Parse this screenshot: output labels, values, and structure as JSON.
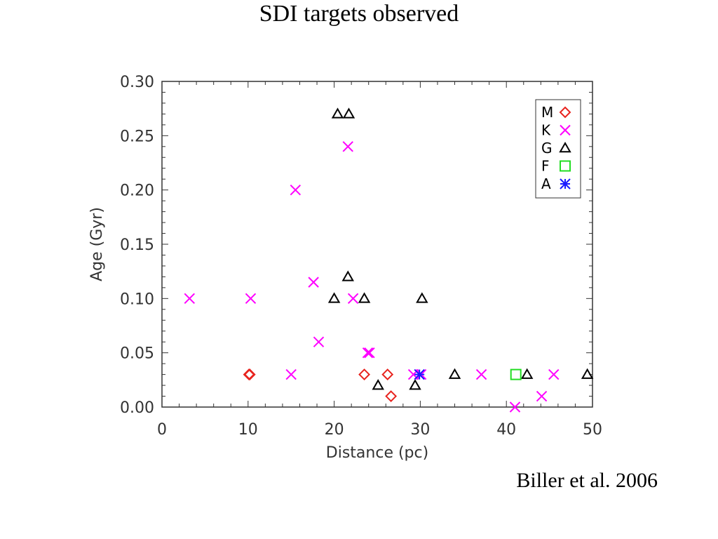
{
  "title": "SDI targets observed",
  "citation": "Biller et al. 2006",
  "chart_data": {
    "type": "scatter",
    "title": "",
    "xlabel": "Distance (pc)",
    "ylabel": "Age (Gyr)",
    "xlim": [
      0,
      50
    ],
    "ylim": [
      0,
      0.3
    ],
    "xticks": [
      "0",
      "10",
      "20",
      "30",
      "40",
      "50"
    ],
    "yticks": [
      "0.00",
      "0.05",
      "0.10",
      "0.15",
      "0.20",
      "0.25",
      "0.30"
    ],
    "legend_position": "top-right",
    "series": [
      {
        "name": "M",
        "marker": "diamond",
        "color": "#e8231e",
        "points": [
          [
            10.1,
            0.03
          ],
          [
            10.2,
            0.03
          ],
          [
            23.5,
            0.03
          ],
          [
            26.2,
            0.03
          ],
          [
            26.6,
            0.01
          ]
        ]
      },
      {
        "name": "K",
        "marker": "x",
        "color": "#ff00ff",
        "points": [
          [
            3.2,
            0.1
          ],
          [
            10.3,
            0.1
          ],
          [
            15.0,
            0.03
          ],
          [
            15.5,
            0.2
          ],
          [
            17.6,
            0.115
          ],
          [
            18.2,
            0.06
          ],
          [
            21.6,
            0.24
          ],
          [
            22.2,
            0.1
          ],
          [
            23.9,
            0.05
          ],
          [
            24.1,
            0.05
          ],
          [
            29.2,
            0.03
          ],
          [
            30.1,
            0.03
          ],
          [
            37.1,
            0.03
          ],
          [
            41.0,
            0.0
          ],
          [
            44.1,
            0.01
          ],
          [
            45.5,
            0.03
          ]
        ]
      },
      {
        "name": "G",
        "marker": "triangle",
        "color": "#000000",
        "points": [
          [
            20.4,
            0.27
          ],
          [
            21.7,
            0.27
          ],
          [
            21.6,
            0.12
          ],
          [
            20.0,
            0.1
          ],
          [
            23.5,
            0.1
          ],
          [
            30.2,
            0.1
          ],
          [
            25.1,
            0.02
          ],
          [
            29.4,
            0.02
          ],
          [
            34.0,
            0.03
          ],
          [
            42.4,
            0.03
          ],
          [
            49.4,
            0.03
          ]
        ]
      },
      {
        "name": "F",
        "marker": "square",
        "color": "#22dd22",
        "points": [
          [
            41.1,
            0.03
          ]
        ]
      },
      {
        "name": "A",
        "marker": "asterisk",
        "color": "#1a1aff",
        "points": [
          [
            29.9,
            0.03
          ]
        ]
      }
    ]
  }
}
